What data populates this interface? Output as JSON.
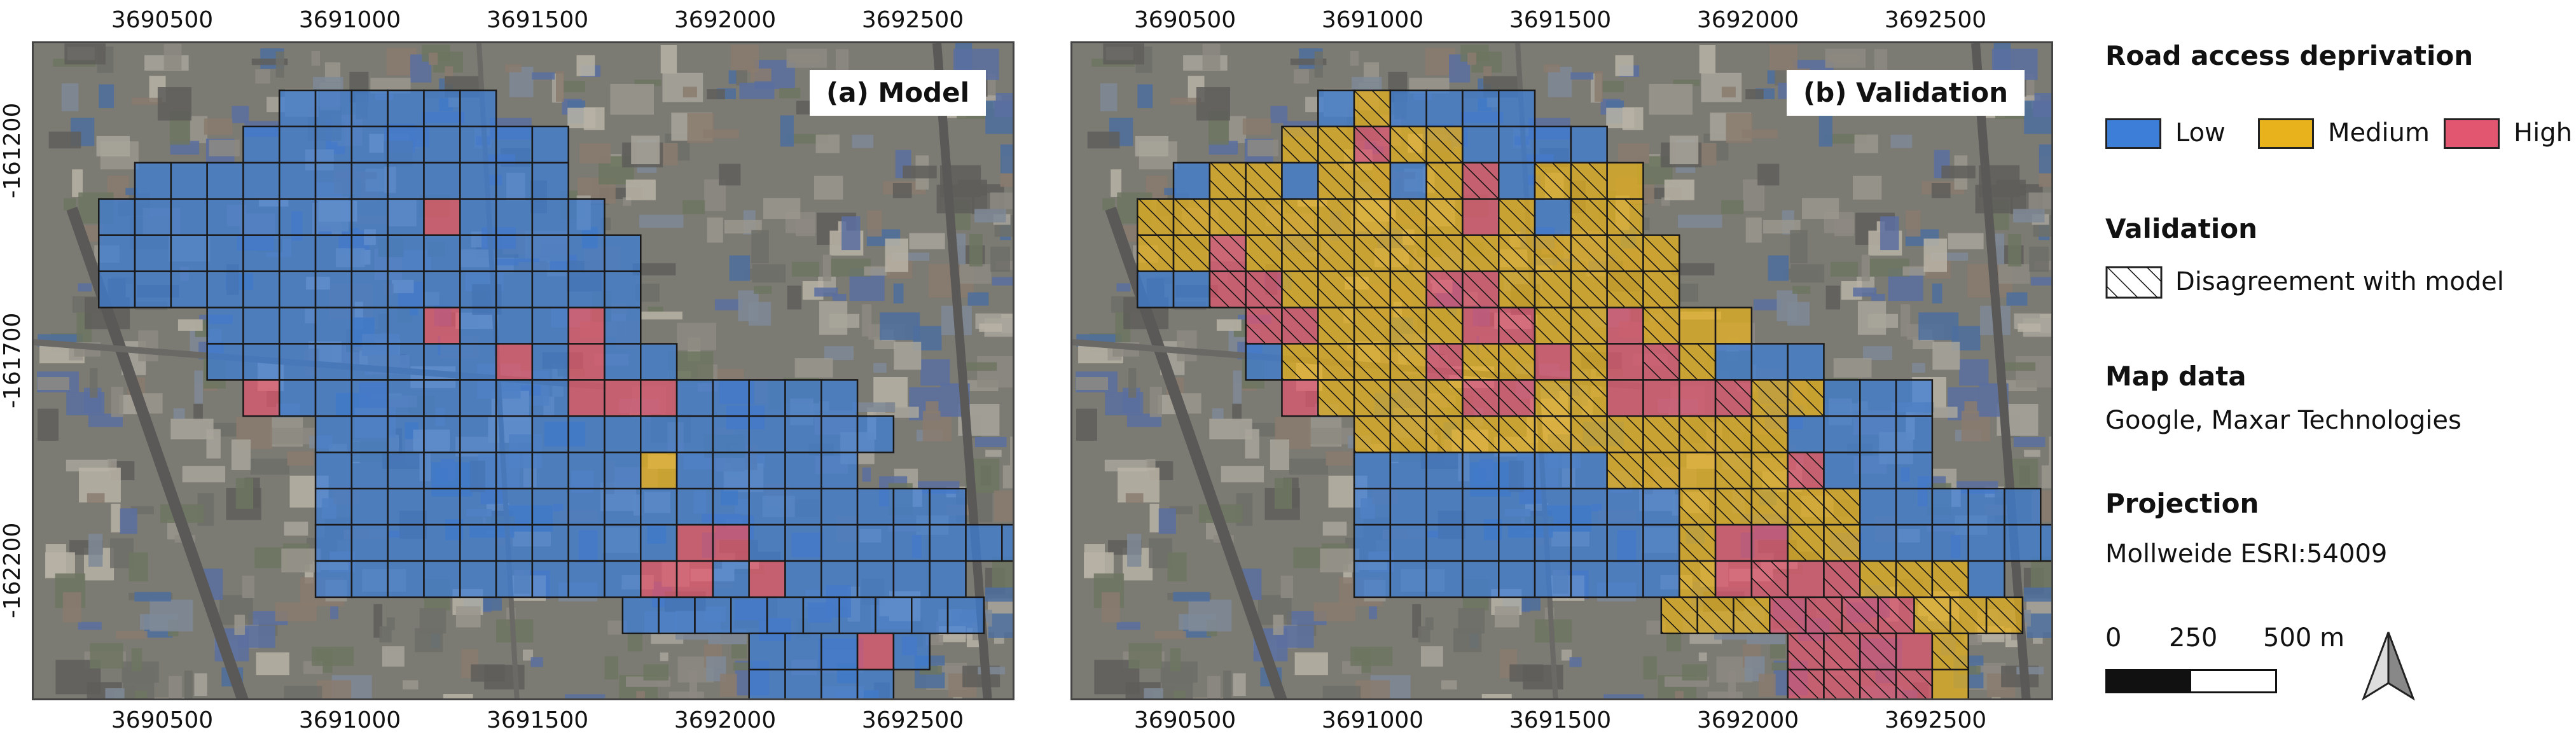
{
  "panels": [
    {
      "id": "model",
      "title": "(a) Model"
    },
    {
      "id": "validation",
      "title": "(b) Validation"
    }
  ],
  "x_ticks": [
    "3690500",
    "3691000",
    "3691500",
    "3692000",
    "3692500"
  ],
  "y_ticks": [
    "-161200",
    "-161700",
    "-162200"
  ],
  "legend": {
    "title": "Road access deprivation",
    "classes": [
      {
        "label": "Low",
        "color": "#3d7ed8"
      },
      {
        "label": "Medium",
        "color": "#e8b21c"
      },
      {
        "label": "High",
        "color": "#e2566f"
      }
    ],
    "validation_title": "Validation",
    "validation_item": "Disagreement with model",
    "map_data_title": "Map data",
    "map_data_text": "Google, Maxar Technologies",
    "projection_title": "Projection",
    "projection_text": "Mollweide ESRI:54009",
    "scale_labels": [
      "0",
      "250",
      "500 m"
    ],
    "north_arrow": "north-arrow-icon"
  },
  "grids": {
    "rows_start_y": -160850,
    "cell_size_m": 100,
    "rows_model": [
      {
        "x_start": 3690850,
        "cells": "LLLLLL"
      },
      {
        "x_start": 3690750,
        "cells": "LLLLLLLLL"
      },
      {
        "x_start": 3690450,
        "cells": "LLLLLLLLLLLL"
      },
      {
        "x_start": 3690350,
        "cells": "LLLLLLLLLHLLLL"
      },
      {
        "x_start": 3690350,
        "cells": "LLLLLLLLLLLLLLL"
      },
      {
        "x_start": 3690350,
        "cells": "LLLLLLLLLLLLLLL"
      },
      {
        "x_start": 3690650,
        "cells": "LLLLLLHLLLHL"
      },
      {
        "x_start": 3690650,
        "cells": "LLLLLLLLHLHLL"
      },
      {
        "x_start": 3690750,
        "cells": "HLLLLLLLLHHHLLLLL"
      },
      {
        "x_start": 3690950,
        "cells": "LLLLLLLLLLLLLLLL"
      },
      {
        "x_start": 3690950,
        "cells": "LLLLLLLLLMLLLLL"
      },
      {
        "x_start": 3690950,
        "cells": "LLLLLLLLLLLLLLLLLL"
      },
      {
        "x_start": 3690950,
        "cells": "LLLLLLLLLLHHLLLLLLLLL"
      },
      {
        "x_start": 3690950,
        "cells": "LLLLLLLLLHHLHLLLLL"
      },
      {
        "x_start": 3691800,
        "cells": "LLLLLLLLLL"
      },
      {
        "x_start": 3692150,
        "cells": "LLLHL"
      },
      {
        "x_start": 3692150,
        "cells": "LLLL"
      }
    ],
    "rows_validation": [
      {
        "x_start": 3690850,
        "cells": "LMLLLL"
      },
      {
        "x_start": 3690750,
        "cells": "MMHMMLLLL"
      },
      {
        "x_start": 3690450,
        "cells": "LMMLMMLMHLMMM"
      },
      {
        "x_start": 3690350,
        "cells": "MMMMMMMMMHMLMM"
      },
      {
        "x_start": 3690350,
        "cells": "MMHMMMMMMMMMMMM"
      },
      {
        "x_start": 3690350,
        "cells": "LLHHMMMMHHMMMMM"
      },
      {
        "x_start": 3690650,
        "cells": "HHMMMMHHMMHMMM"
      },
      {
        "x_start": 3690650,
        "cells": "LMMMMHMMHMHHMLLL"
      },
      {
        "x_start": 3690750,
        "cells": "HMMMMHHMMHHHHMMLLL"
      },
      {
        "x_start": 3690950,
        "cells": "MMMMMMMMMMMMLLLL"
      },
      {
        "x_start": 3690950,
        "cells": "LLLLLLLMMMMMHLLL"
      },
      {
        "x_start": 3690950,
        "cells": "LLLLLLLLLMMMMMLLLLL"
      },
      {
        "x_start": 3690950,
        "cells": "LLLLLLLLLMHHMMLLLLLLL"
      },
      {
        "x_start": 3690950,
        "cells": "LLLLLLLLLMHHHHMMML"
      },
      {
        "x_start": 3691800,
        "cells": "MMMHHHHMMM"
      },
      {
        "x_start": 3692150,
        "cells": "HHHHM"
      },
      {
        "x_start": 3692150,
        "cells": "HHHHM"
      }
    ],
    "disagreement_note": "hatched cells in panel (b) are those whose class differs from panel (a)"
  }
}
